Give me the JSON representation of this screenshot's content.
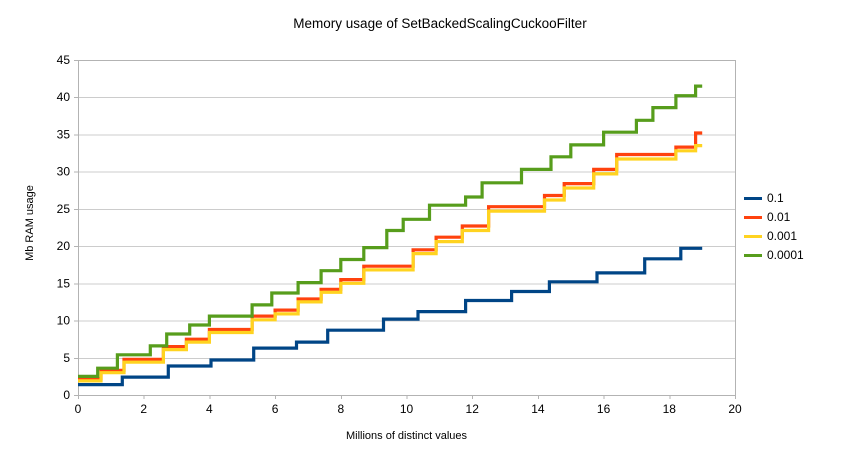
{
  "chart_data": {
    "type": "line",
    "line_style": "step-after",
    "title": "Memory usage of SetBackedScalingCuckooFilter",
    "xlabel": "Millions of distinct values",
    "ylabel": "Mb RAM usage",
    "xlim": [
      0,
      20
    ],
    "ylim": [
      0,
      45
    ],
    "xticks": [
      0,
      2,
      4,
      6,
      8,
      10,
      12,
      14,
      16,
      18,
      20
    ],
    "yticks": [
      0,
      5,
      10,
      15,
      20,
      25,
      30,
      35,
      40,
      45
    ],
    "grid": "horizontal",
    "legend_position": "right",
    "x_end": 19.0,
    "series": [
      {
        "name": "0.1",
        "color": "#004586",
        "steps": [
          [
            0,
            1.4
          ],
          [
            1.35,
            2.4
          ],
          [
            2.75,
            3.9
          ],
          [
            4.05,
            4.7
          ],
          [
            5.35,
            6.3
          ],
          [
            6.65,
            7.1
          ],
          [
            7.6,
            8.7
          ],
          [
            9.3,
            10.2
          ],
          [
            10.35,
            11.2
          ],
          [
            11.8,
            12.7
          ],
          [
            13.2,
            13.9
          ],
          [
            14.35,
            15.2
          ],
          [
            15.8,
            16.4
          ],
          [
            17.25,
            18.3
          ],
          [
            18.35,
            19.7
          ]
        ]
      },
      {
        "name": "0.01",
        "color": "#ff420e",
        "steps": [
          [
            0,
            2.2
          ],
          [
            0.7,
            3.3
          ],
          [
            1.4,
            4.8
          ],
          [
            2.6,
            6.5
          ],
          [
            3.3,
            7.5
          ],
          [
            4.0,
            8.8
          ],
          [
            5.3,
            10.6
          ],
          [
            6.0,
            11.4
          ],
          [
            6.7,
            12.9
          ],
          [
            7.4,
            14.2
          ],
          [
            8.0,
            15.5
          ],
          [
            8.7,
            17.3
          ],
          [
            10.2,
            19.5
          ],
          [
            10.9,
            21.2
          ],
          [
            11.7,
            22.7
          ],
          [
            12.5,
            25.3
          ],
          [
            14.2,
            26.8
          ],
          [
            14.8,
            28.4
          ],
          [
            15.7,
            30.3
          ],
          [
            16.4,
            32.3
          ],
          [
            18.2,
            33.3
          ],
          [
            18.8,
            35.2
          ]
        ]
      },
      {
        "name": "0.001",
        "color": "#ffd320",
        "steps": [
          [
            0,
            1.9
          ],
          [
            0.7,
            3.0
          ],
          [
            1.4,
            4.4
          ],
          [
            2.6,
            6.1
          ],
          [
            3.3,
            7.1
          ],
          [
            4.0,
            8.4
          ],
          [
            5.3,
            10.1
          ],
          [
            6.0,
            10.9
          ],
          [
            6.7,
            12.5
          ],
          [
            7.4,
            13.8
          ],
          [
            8.0,
            15.0
          ],
          [
            8.7,
            16.8
          ],
          [
            10.2,
            19.0
          ],
          [
            10.9,
            20.6
          ],
          [
            11.7,
            22.1
          ],
          [
            12.5,
            24.7
          ],
          [
            14.2,
            26.2
          ],
          [
            14.8,
            27.8
          ],
          [
            15.7,
            29.7
          ],
          [
            16.4,
            31.7
          ],
          [
            18.2,
            32.8
          ],
          [
            18.8,
            33.5
          ]
        ]
      },
      {
        "name": "0.0001",
        "color": "#579d1c",
        "steps": [
          [
            0,
            2.5
          ],
          [
            0.6,
            3.6
          ],
          [
            1.2,
            5.4
          ],
          [
            2.2,
            6.6
          ],
          [
            2.7,
            8.2
          ],
          [
            3.4,
            9.4
          ],
          [
            4.0,
            10.6
          ],
          [
            5.3,
            12.1
          ],
          [
            5.9,
            13.7
          ],
          [
            6.7,
            15.1
          ],
          [
            7.4,
            16.7
          ],
          [
            8.0,
            18.2
          ],
          [
            8.7,
            19.8
          ],
          [
            9.4,
            22.1
          ],
          [
            9.9,
            23.6
          ],
          [
            10.7,
            25.5
          ],
          [
            11.8,
            26.6
          ],
          [
            12.3,
            28.5
          ],
          [
            13.5,
            30.3
          ],
          [
            14.4,
            32.0
          ],
          [
            15.0,
            33.6
          ],
          [
            16.0,
            35.3
          ],
          [
            17.0,
            36.9
          ],
          [
            17.5,
            38.6
          ],
          [
            18.2,
            40.2
          ],
          [
            18.8,
            41.5
          ]
        ]
      }
    ],
    "colors": {
      "grid": "#cccccc",
      "axis": "#b3b3b3",
      "background": "#ffffff"
    }
  }
}
